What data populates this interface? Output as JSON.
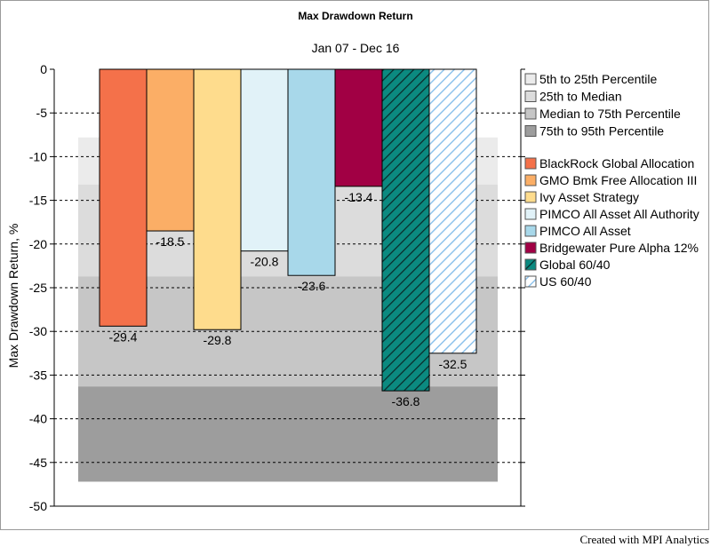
{
  "chart_data": {
    "type": "bar",
    "title": "Max Drawdown Return",
    "subtitle": "Jan 07 - Dec 16",
    "ylabel": "Max Drawdown Return, %",
    "xlabel": "",
    "ylim": [
      -50,
      0
    ],
    "yticks": [
      0,
      -5,
      -10,
      -15,
      -20,
      -25,
      -30,
      -35,
      -40,
      -45,
      -50
    ],
    "grid": true,
    "legend_position": "right",
    "percentile_bands": [
      {
        "name": "5th to 25th Percentile",
        "from": -7.8,
        "to": -13.2,
        "color": "#ebebeb"
      },
      {
        "name": "25th to Median",
        "from": -13.2,
        "to": -23.7,
        "color": "#dcdcdc"
      },
      {
        "name": "Median to 75th Percentile",
        "from": -23.7,
        "to": -36.3,
        "color": "#c6c6c6"
      },
      {
        "name": "75th to 95th Percentile",
        "from": -36.3,
        "to": -47.2,
        "color": "#9d9d9d"
      }
    ],
    "series": [
      {
        "name": "BlackRock Global Allocation",
        "value": -29.4,
        "label": "-29.4",
        "color": "#f4714a",
        "pattern": "solid"
      },
      {
        "name": "GMO Bmk Free Allocation III",
        "value": -18.5,
        "label": "-18.5",
        "color": "#fbae66",
        "pattern": "solid"
      },
      {
        "name": "Ivy Asset Strategy",
        "value": -29.8,
        "label": "-29.8",
        "color": "#fedc8d",
        "pattern": "solid"
      },
      {
        "name": "PIMCO All Asset All Authority",
        "value": -20.8,
        "label": "-20.8",
        "color": "#e1f2f8",
        "pattern": "solid"
      },
      {
        "name": "PIMCO All Asset",
        "value": -23.6,
        "label": "-23.6",
        "color": "#a8d8ea",
        "pattern": "solid"
      },
      {
        "name": "Bridgewater Pure Alpha 12%",
        "value": -13.4,
        "label": "-13.4",
        "color": "#a10044",
        "pattern": "solid"
      },
      {
        "name": "Global 60/40",
        "value": -36.8,
        "label": "-36.8",
        "color": "#0b8a80",
        "pattern": "hatch-dark"
      },
      {
        "name": "US 60/40",
        "value": -32.5,
        "label": "-32.5",
        "color": "#c3dff5",
        "pattern": "hatch-light"
      }
    ]
  },
  "credit": "Created with MPI Analytics"
}
